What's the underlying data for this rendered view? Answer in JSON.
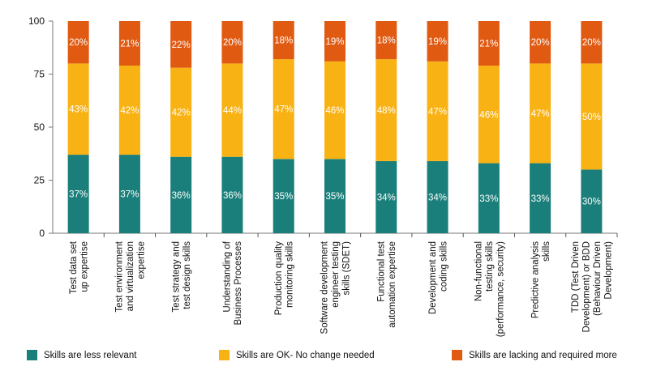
{
  "chart_data": {
    "type": "bar",
    "stacked": true,
    "title": "",
    "xlabel": "",
    "ylabel": "",
    "ylim": [
      0,
      100
    ],
    "yticks": [
      0,
      25,
      50,
      75,
      100
    ],
    "grid": false,
    "legend_position": "bottom",
    "categories": [
      "Test data set up expertise",
      "Test environment and virtualization expertise",
      "Test strategy and test design skills",
      "Understanding of Business Processes",
      "Production quality monitoring skills",
      "Software development engineer testing skills (SDET)",
      "Functional test automation expertise",
      "Development and coding skills",
      "Non-functional testing skills (performance, security)",
      "Predictive analysis skills",
      "TDD (Test Driven Development) or BDD (Behaviour Driven Development)"
    ],
    "category_lines": [
      [
        "Test data set",
        "up expertise"
      ],
      [
        "Test environment",
        "and virtualization",
        "expertise"
      ],
      [
        "Test strategy and",
        "test design skills"
      ],
      [
        "Understanding of",
        "Business Processes"
      ],
      [
        "Production quality",
        "monitoring skills"
      ],
      [
        "Software development",
        "engineer testing",
        "skills (SDET)"
      ],
      [
        "Functional test",
        "automation expertise"
      ],
      [
        "Development and",
        "coding skills"
      ],
      [
        "Non-functional",
        "testing skills",
        "(performance, security)"
      ],
      [
        "Predictive analysis",
        "skills"
      ],
      [
        "TDD (Test Driven",
        "Development) or BDD",
        "(Behaviour Driven",
        "Development)"
      ]
    ],
    "series": [
      {
        "name": "Skills are less relevant",
        "color": "#1a7f7a",
        "values": [
          37,
          37,
          36,
          36,
          35,
          35,
          34,
          34,
          33,
          33,
          30
        ]
      },
      {
        "name": "Skills are OK- No change needed",
        "color": "#f8b214",
        "values": [
          43,
          42,
          42,
          44,
          47,
          46,
          48,
          47,
          46,
          47,
          50
        ]
      },
      {
        "name": "Skills are lacking and required more",
        "color": "#e05a12",
        "values": [
          20,
          21,
          22,
          20,
          18,
          19,
          18,
          19,
          21,
          20,
          20
        ]
      }
    ],
    "value_suffix": "%"
  },
  "legend": {
    "items": [
      {
        "label": "Skills are less relevant",
        "color": "#1a7f7a"
      },
      {
        "label": "Skills are OK- No change needed",
        "color": "#f8b214"
      },
      {
        "label": "Skills are lacking and required more",
        "color": "#e05a12"
      }
    ]
  }
}
